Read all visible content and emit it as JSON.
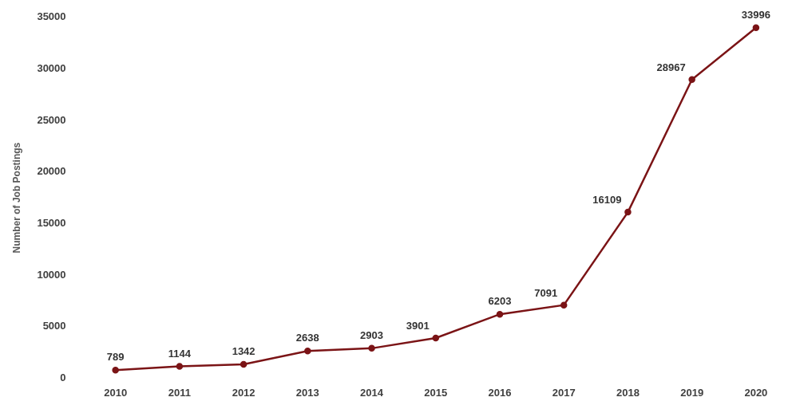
{
  "chart_data": {
    "type": "line",
    "y_label": "Number of Job Postings",
    "categories": [
      "2010",
      "2011",
      "2012",
      "2013",
      "2014",
      "2015",
      "2016",
      "2017",
      "2018",
      "2019",
      "2020"
    ],
    "values": [
      789,
      1144,
      1342,
      2638,
      2903,
      3901,
      6203,
      7091,
      16109,
      28967,
      33996
    ],
    "color": "#7b1416",
    "marker": "circle",
    "ylim": [
      0,
      35000
    ],
    "yticks": [
      0,
      5000,
      10000,
      15000,
      20000,
      25000,
      30000,
      35000
    ],
    "grid": false,
    "data_labels": true
  }
}
